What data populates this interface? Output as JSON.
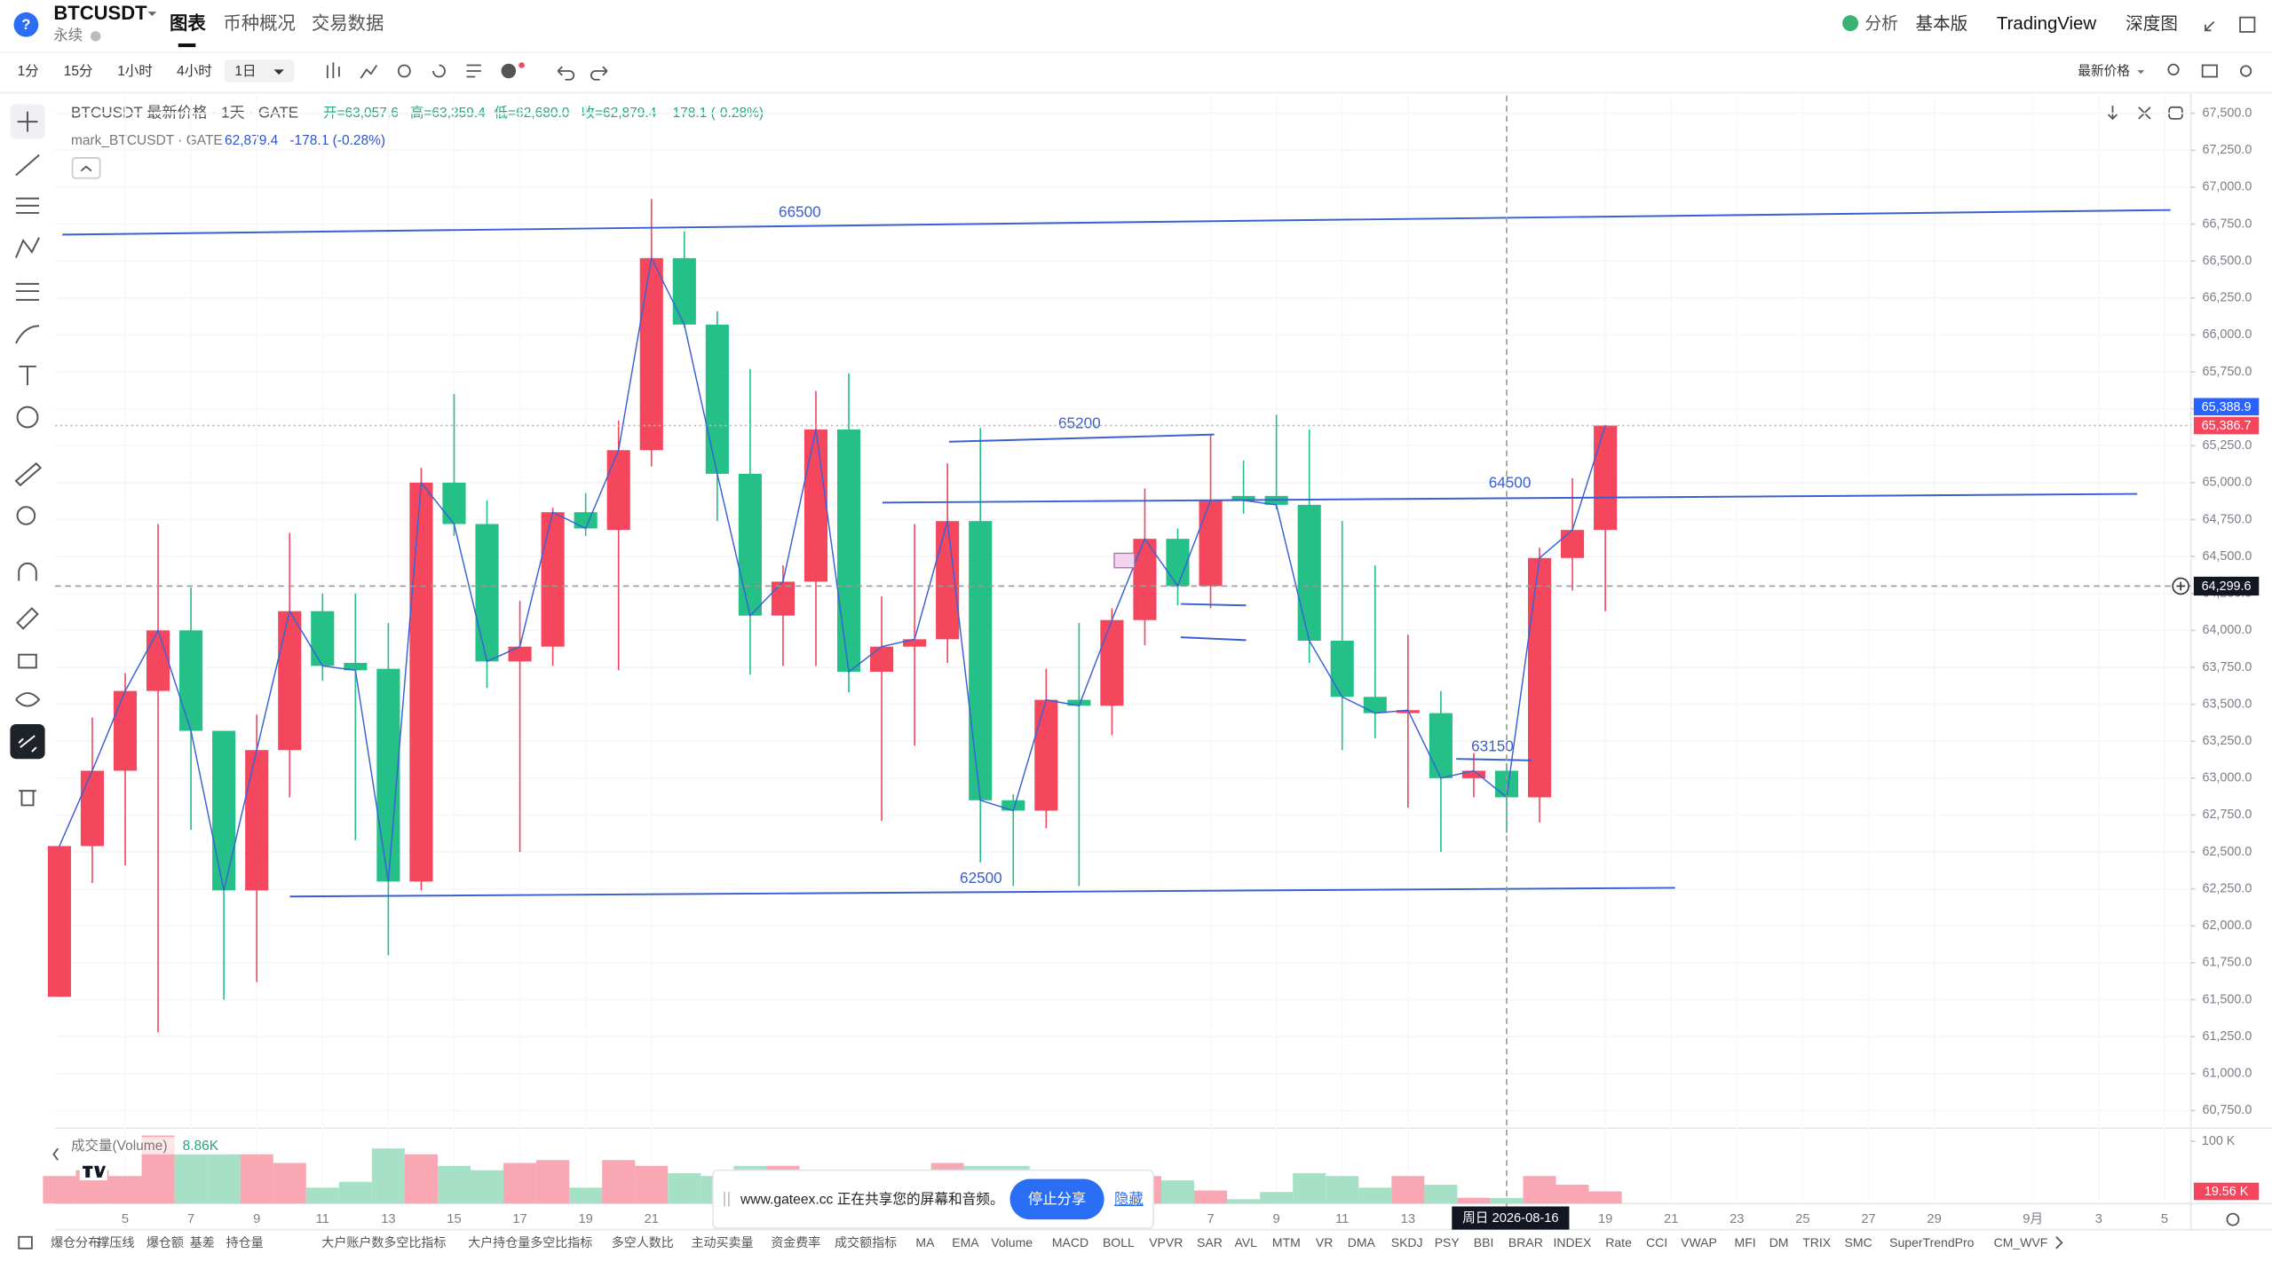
{
  "header": {
    "help_icon": "?",
    "symbol": "BTCUSDT",
    "contract": "永续",
    "tabs": [
      "图表",
      "币种概况",
      "交易数据"
    ],
    "right_menu": [
      "分析",
      "基本版",
      "TradingView",
      "深度图"
    ]
  },
  "toolbar": {
    "intervals": [
      "1分",
      "15分",
      "1小时",
      "4小时",
      "1日"
    ],
    "price_source": "最新价格"
  },
  "legend": {
    "main": "BTCUSDT 最新价格 · 1天 · GATE",
    "open": "开=63,057.6",
    "high": "高=63,359.4",
    "low": "低=62,680.0",
    "close": "收=62,879.4",
    "change": "-178.1 (-0.28%)",
    "mark_label": "mark_BTCUSDT · GATE",
    "mark_value": "62,879.4",
    "mark_change": "-178.1 (-0.28%)"
  },
  "chart_data": {
    "type": "candlestick",
    "up_color": "#f4475d",
    "down_color": "#25bf88",
    "mark_color": "#3a62d6",
    "grid": true,
    "categories": [
      null,
      null,
      "5",
      null,
      "7",
      null,
      "9",
      null,
      "11",
      null,
      "13",
      null,
      "15",
      null,
      "17",
      null,
      "19",
      null,
      "21",
      null,
      null,
      null,
      null,
      null,
      null,
      null,
      null,
      null,
      null,
      null,
      null,
      null,
      null,
      null,
      null,
      "7",
      null,
      "9",
      null,
      "11",
      null,
      "13",
      null,
      null,
      null,
      null,
      null,
      "19",
      null,
      "21",
      null,
      "23",
      null,
      "25",
      null,
      "27",
      null,
      "29",
      null,
      null,
      "9月",
      null,
      "3",
      null,
      "5"
    ],
    "open": [
      61520,
      62540,
      63050,
      63590,
      64000,
      63320,
      62240,
      63190,
      64130,
      63780,
      63740,
      62300,
      65000,
      64720,
      63790,
      63890,
      64800,
      64680,
      65220,
      66520,
      66070,
      65060,
      64100,
      64330,
      65360,
      63720,
      63890,
      63940,
      64740,
      62850,
      62780,
      63530,
      63490,
      64070,
      64620,
      64300,
      64910,
      64910,
      64850,
      63930,
      63550,
      63440,
      63440,
      63000,
      63050,
      62870,
      64490,
      64680,
      null,
      null,
      null,
      null,
      null,
      null,
      null,
      null,
      null,
      null,
      null,
      null,
      null,
      null,
      null,
      null,
      null
    ],
    "high": [
      62540,
      63410,
      63710,
      64720,
      64290,
      63320,
      63430,
      64660,
      64250,
      64250,
      64050,
      65100,
      65600,
      64880,
      64200,
      64830,
      64930,
      65420,
      66920,
      66700,
      66160,
      65770,
      64440,
      65620,
      65740,
      64230,
      64720,
      65130,
      65370,
      62890,
      63740,
      64050,
      64150,
      64960,
      64690,
      65320,
      65150,
      65460,
      65360,
      64740,
      64440,
      63970,
      63590,
      63170,
      63100,
      64560,
      65030,
      65390,
      null,
      null,
      null,
      null,
      null,
      null,
      null,
      null,
      null,
      null,
      null,
      null,
      null,
      null,
      null,
      null,
      null
    ],
    "low": [
      61520,
      62290,
      62410,
      61280,
      62650,
      61500,
      61620,
      62870,
      63660,
      62580,
      61800,
      62240,
      64640,
      63610,
      62500,
      63760,
      64640,
      63730,
      65110,
      66050,
      64740,
      63700,
      63760,
      63760,
      63580,
      62710,
      63220,
      63780,
      62430,
      62270,
      62660,
      62270,
      63290,
      63900,
      64170,
      64150,
      64790,
      64820,
      63780,
      63190,
      63270,
      62800,
      62500,
      62870,
      62630,
      62700,
      64270,
      64130,
      null,
      null,
      null,
      null,
      null,
      null,
      null,
      null,
      null,
      null,
      null,
      null,
      null,
      null,
      null,
      null,
      null
    ],
    "close": [
      62540,
      63050,
      63590,
      64000,
      63320,
      62240,
      63190,
      64130,
      63760,
      63730,
      62300,
      65000,
      64720,
      63790,
      63890,
      64800,
      64690,
      65220,
      66520,
      66070,
      65060,
      64100,
      64330,
      65360,
      63720,
      63890,
      63940,
      64740,
      62850,
      62780,
      63530,
      63490,
      64070,
      64620,
      64300,
      64880,
      64880,
      64850,
      63930,
      63550,
      63440,
      63460,
      63000,
      63050,
      62870,
      64490,
      64680,
      65386.7,
      null,
      null,
      null,
      null,
      null,
      null,
      null,
      null,
      null,
      null,
      null,
      null,
      null,
      null,
      null,
      null,
      null
    ],
    "ylim": [
      60630,
      67620
    ],
    "yticks": [
      {
        "value": 60750,
        "label": "60,750.0"
      },
      {
        "value": 61000,
        "label": "61,000.0"
      },
      {
        "value": 61250,
        "label": "61,250.0"
      },
      {
        "value": 61500,
        "label": "61,500.0"
      },
      {
        "value": 61750,
        "label": "61,750.0"
      },
      {
        "value": 62000,
        "label": "62,000.0"
      },
      {
        "value": 62250,
        "label": "62,250.0"
      },
      {
        "value": 62500,
        "label": "62,500.0"
      },
      {
        "value": 62750,
        "label": "62,750.0"
      },
      {
        "value": 63000,
        "label": "63,000.0"
      },
      {
        "value": 63250,
        "label": "63,250.0"
      },
      {
        "value": 63500,
        "label": "63,500.0"
      },
      {
        "value": 63750,
        "label": "63,750.0"
      },
      {
        "value": 64000,
        "label": "64,000.0"
      },
      {
        "value": 64250,
        "label": "64,250.0"
      },
      {
        "value": 64500,
        "label": "64,500.0"
      },
      {
        "value": 64750,
        "label": "64,750.0"
      },
      {
        "value": 65000,
        "label": "65,000.0"
      },
      {
        "value": 65250,
        "label": "65,250.0"
      },
      {
        "value": 65500,
        "label": "65,500.0"
      },
      {
        "value": 65750,
        "label": "65,750.0"
      },
      {
        "value": 66000,
        "label": "66,000.0"
      },
      {
        "value": 66250,
        "label": "66,250.0"
      },
      {
        "value": 66500,
        "label": "66,500.0"
      },
      {
        "value": 66750,
        "label": "66,750.0"
      },
      {
        "value": 67000,
        "label": "67,000.0"
      },
      {
        "value": 67250,
        "label": "67,250.0"
      },
      {
        "value": 67500,
        "label": "67,500.0"
      }
    ],
    "price_tags": [
      {
        "value": 65388.9,
        "label": "65,388.9",
        "color": "#2962ff"
      },
      {
        "value": 65386.7,
        "label": "65,386.7",
        "color": "#f4475d"
      }
    ],
    "crosshair": {
      "value": 64299.6,
      "label": "64,299.6",
      "date": "周日 2026-08-16"
    },
    "drawing_labels": [
      "66500",
      "65200",
      "64500",
      "62500",
      "63150"
    ],
    "volume": {
      "title": "成交量(Volume)",
      "up_color": "#f8a7b3",
      "down_color": "#a6e1c7",
      "values": [
        44200,
        53500,
        44200,
        109300,
        79100,
        79100,
        79100,
        65100,
        25600,
        34900,
        88400,
        79100,
        60500,
        53500,
        65100,
        69800,
        25600,
        69800,
        60500,
        48800,
        44200,
        60500,
        60500,
        53500,
        44200,
        37200,
        48800,
        65100,
        60500,
        60500,
        53500,
        48800,
        44200,
        44200,
        37200,
        20900,
        7000,
        18600,
        48800,
        44200,
        25600,
        44200,
        30200,
        9300,
        8860,
        44200,
        30200,
        19560,
        null,
        null,
        null,
        null,
        null,
        null,
        null,
        null,
        null,
        null,
        null,
        null,
        null,
        null,
        null,
        null,
        null
      ],
      "value_labels": [
        null,
        null,
        null,
        null,
        null,
        null,
        null,
        null,
        null,
        null,
        null,
        null,
        null,
        null,
        null,
        null,
        null,
        null,
        null,
        null,
        null,
        null,
        null,
        null,
        null,
        null,
        null,
        null,
        null,
        null,
        null,
        null,
        null,
        null,
        null,
        null,
        null,
        null,
        null,
        null,
        null,
        null,
        null,
        null,
        "8.86K",
        null,
        null,
        "19.56 K",
        null,
        null,
        null,
        null,
        null,
        null,
        null,
        null,
        null,
        null,
        null,
        null,
        null,
        null,
        null,
        null,
        null
      ],
      "ylim": [
        0,
        118600
      ],
      "yticks": [
        {
          "value": 100000,
          "label": "100 K"
        }
      ]
    }
  },
  "indicators": [
    "爆仓分布",
    "撑压线",
    "爆仓额",
    "基差",
    "持仓量",
    "大户账户数多空比指标",
    "大户持仓量多空比指标",
    "多空人数比",
    "主动买卖量",
    "资金费率",
    "成交额指标",
    "MA",
    "EMA",
    "Volume",
    "MACD",
    "BOLL",
    "VPVR",
    "SAR",
    "AVL",
    "MTM",
    "VR",
    "DMA",
    "SKDJ",
    "PSY",
    "BBI",
    "BRAR",
    "INDEX",
    "Rate",
    "CCI",
    "VWAP",
    "MFI",
    "DM",
    "TRIX",
    "SMC",
    "SuperTrendPro",
    "CM_WVF"
  ],
  "share_bar": {
    "text": "www.gateex.cc 正在共享您的屏幕和音频。",
    "button": "停止分享",
    "link": "隐藏"
  }
}
